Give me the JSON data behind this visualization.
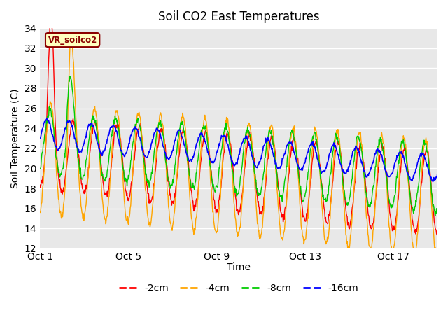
{
  "title": "Soil CO2 East Temperatures",
  "xlabel": "Time",
  "ylabel": "Soil Temperature (C)",
  "ylim": [
    12,
    34
  ],
  "yticks": [
    12,
    14,
    16,
    18,
    20,
    22,
    24,
    26,
    28,
    30,
    32,
    34
  ],
  "xtick_labels": [
    "Oct 1",
    "Oct 5",
    "Oct 9",
    "Oct 13",
    "Oct 17"
  ],
  "xtick_positions": [
    0,
    4,
    8,
    12,
    16
  ],
  "n_days": 18,
  "colors": {
    "-2cm": "#ff0000",
    "-4cm": "#ffa500",
    "-8cm": "#00cc00",
    "-16cm": "#0000ff"
  },
  "legend_labels": [
    "-2cm",
    "-4cm",
    "-8cm",
    "-16cm"
  ],
  "annotation_text": "VR_soilco2",
  "plot_bg_color": "#e8e8e8",
  "title_fontsize": 12,
  "axis_fontsize": 10,
  "legend_fontsize": 10
}
